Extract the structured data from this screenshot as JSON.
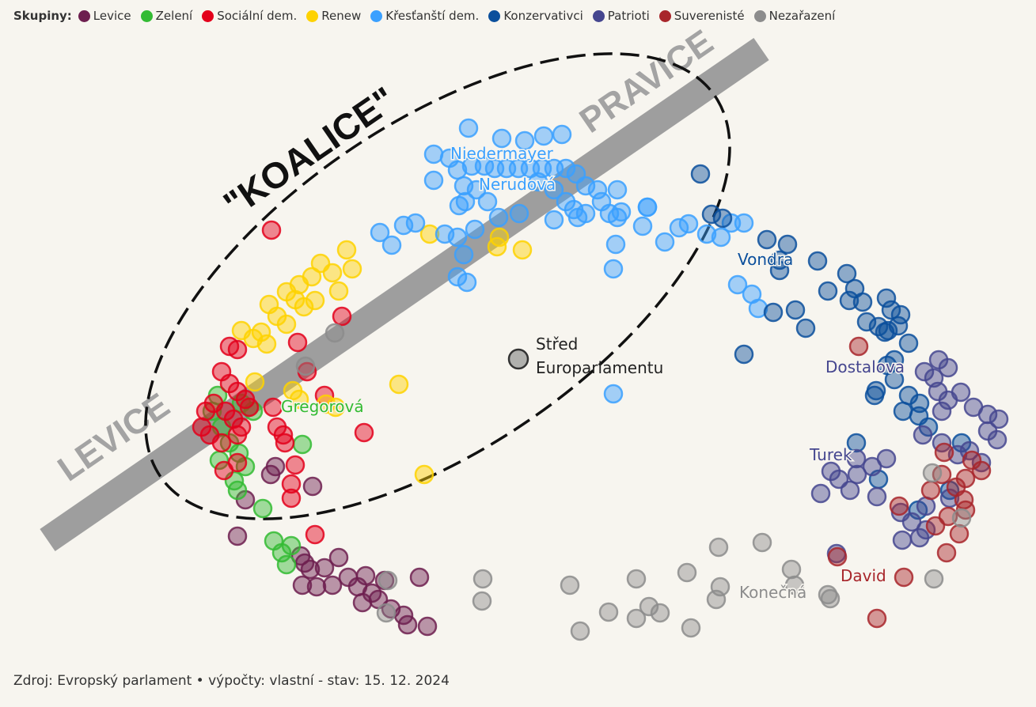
{
  "legend": {
    "title": "Skupiny:",
    "groups": [
      {
        "key": "levice",
        "name": "Levice",
        "color": "#6d1f4f"
      },
      {
        "key": "zeleni",
        "name": "Zelení",
        "color": "#33bb33"
      },
      {
        "key": "socdem",
        "name": "Sociální dem.",
        "color": "#e3001b"
      },
      {
        "key": "renew",
        "name": "Renew",
        "color": "#fed200"
      },
      {
        "key": "krestan",
        "name": "Křesťanští dem.",
        "color": "#3aa0ff"
      },
      {
        "key": "konz",
        "name": "Konzervativci",
        "color": "#0b4f9c"
      },
      {
        "key": "patrioti",
        "name": "Patrioti",
        "color": "#45468f"
      },
      {
        "key": "suver",
        "name": "Suverenisté",
        "color": "#a8262b"
      },
      {
        "key": "nezar",
        "name": "Nezařazení",
        "color": "#8c8c8c"
      }
    ]
  },
  "source": "Zdroj: Evropský parlament • výpočty: vlastní - stav: 15. 12. 2024",
  "chart_data": {
    "type": "scatter",
    "annotations": {
      "levice": "LEVICE",
      "pravice": "PRAVICE",
      "koalice": "\"KOALICE\"",
      "center_line1": "Střed",
      "center_line2": "Europarlamentu"
    },
    "labels": [
      {
        "text": "Niedermayer",
        "group": "krestan"
      },
      {
        "text": "Nerudová",
        "group": "krestan"
      },
      {
        "text": "Vondra",
        "group": "konz"
      },
      {
        "text": "Dostalova",
        "group": "patrioti"
      },
      {
        "text": "Turek",
        "group": "patrioti"
      },
      {
        "text": "Gregorová",
        "group": "zeleni"
      },
      {
        "text": "David",
        "group": "suver"
      },
      {
        "text": "Konečná",
        "group": "nezar"
      }
    ],
    "center": [
      655,
      454
    ],
    "series": [
      {
        "group": "levice",
        "points": [
          [
            300,
            678
          ],
          [
            310,
            632
          ],
          [
            342,
            600
          ],
          [
            348,
            590
          ],
          [
            385,
            712
          ],
          [
            392,
            720
          ],
          [
            382,
            740
          ],
          [
            400,
            742
          ],
          [
            410,
            718
          ],
          [
            420,
            740
          ],
          [
            428,
            705
          ],
          [
            440,
            730
          ],
          [
            452,
            742
          ],
          [
            458,
            762
          ],
          [
            462,
            728
          ],
          [
            470,
            750
          ],
          [
            478,
            758
          ],
          [
            486,
            734
          ],
          [
            494,
            770
          ],
          [
            510,
            778
          ],
          [
            515,
            790
          ],
          [
            530,
            730
          ],
          [
            540,
            792
          ],
          [
            395,
            615
          ],
          [
            380,
            703
          ]
        ]
      },
      {
        "group": "zeleni",
        "points": [
          [
            275,
            500
          ],
          [
            268,
            520
          ],
          [
            280,
            540
          ],
          [
            290,
            560
          ],
          [
            302,
            573
          ],
          [
            310,
            590
          ],
          [
            296,
            608
          ],
          [
            277,
            582
          ],
          [
            300,
            620
          ],
          [
            382,
            562
          ],
          [
            332,
            643
          ],
          [
            346,
            684
          ],
          [
            356,
            699
          ],
          [
            362,
            714
          ],
          [
            368,
            690
          ],
          [
            305,
            510
          ],
          [
            320,
            520
          ]
        ]
      },
      {
        "group": "socdem",
        "points": [
          [
            343,
            291
          ],
          [
            290,
            438
          ],
          [
            300,
            442
          ],
          [
            376,
            433
          ],
          [
            432,
            400
          ],
          [
            280,
            470
          ],
          [
            290,
            485
          ],
          [
            300,
            495
          ],
          [
            310,
            505
          ],
          [
            315,
            515
          ],
          [
            270,
            510
          ],
          [
            260,
            520
          ],
          [
            255,
            540
          ],
          [
            265,
            550
          ],
          [
            285,
            520
          ],
          [
            295,
            530
          ],
          [
            305,
            540
          ],
          [
            280,
            560
          ],
          [
            300,
            550
          ],
          [
            345,
            515
          ],
          [
            350,
            540
          ],
          [
            358,
            550
          ],
          [
            360,
            560
          ],
          [
            368,
            612
          ],
          [
            373,
            588
          ],
          [
            388,
            470
          ],
          [
            410,
            500
          ],
          [
            460,
            547
          ],
          [
            398,
            676
          ],
          [
            368,
            630
          ],
          [
            283,
            595
          ],
          [
            300,
            585
          ]
        ]
      },
      {
        "group": "renew",
        "points": [
          [
            438,
            316
          ],
          [
            405,
            333
          ],
          [
            420,
            345
          ],
          [
            445,
            340
          ],
          [
            394,
            350
          ],
          [
            378,
            360
          ],
          [
            362,
            369
          ],
          [
            373,
            379
          ],
          [
            384,
            388
          ],
          [
            398,
            380
          ],
          [
            428,
            368
          ],
          [
            340,
            385
          ],
          [
            350,
            400
          ],
          [
            362,
            410
          ],
          [
            330,
            420
          ],
          [
            305,
            418
          ],
          [
            320,
            428
          ],
          [
            337,
            435
          ],
          [
            322,
            483
          ],
          [
            370,
            494
          ],
          [
            378,
            505
          ],
          [
            412,
            511
          ],
          [
            424,
            515
          ],
          [
            504,
            486
          ],
          [
            543,
            296
          ],
          [
            631,
            300
          ],
          [
            660,
            316
          ],
          [
            536,
            600
          ],
          [
            628,
            312
          ]
        ]
      },
      {
        "group": "krestan",
        "points": [
          [
            592,
            162
          ],
          [
            634,
            175
          ],
          [
            663,
            178
          ],
          [
            687,
            172
          ],
          [
            710,
            170
          ],
          [
            548,
            195
          ],
          [
            568,
            200
          ],
          [
            578,
            215
          ],
          [
            596,
            210
          ],
          [
            612,
            210
          ],
          [
            625,
            213
          ],
          [
            640,
            213
          ],
          [
            655,
            213
          ],
          [
            670,
            213
          ],
          [
            685,
            213
          ],
          [
            700,
            213
          ],
          [
            715,
            213
          ],
          [
            728,
            220
          ],
          [
            740,
            235
          ],
          [
            755,
            240
          ],
          [
            680,
            230
          ],
          [
            700,
            240
          ],
          [
            715,
            255
          ],
          [
            725,
            265
          ],
          [
            740,
            270
          ],
          [
            760,
            255
          ],
          [
            770,
            270
          ],
          [
            785,
            268
          ],
          [
            548,
            228
          ],
          [
            586,
            235
          ],
          [
            602,
            240
          ],
          [
            588,
            255
          ],
          [
            616,
            255
          ],
          [
            580,
            260
          ],
          [
            480,
            294
          ],
          [
            495,
            310
          ],
          [
            510,
            285
          ],
          [
            525,
            282
          ],
          [
            562,
            296
          ],
          [
            578,
            300
          ],
          [
            586,
            322
          ],
          [
            600,
            290
          ],
          [
            630,
            275
          ],
          [
            656,
            270
          ],
          [
            700,
            278
          ],
          [
            730,
            275
          ],
          [
            780,
            275
          ],
          [
            812,
            286
          ],
          [
            818,
            262
          ],
          [
            778,
            309
          ],
          [
            775,
            340
          ],
          [
            840,
            306
          ],
          [
            858,
            288
          ],
          [
            870,
            283
          ],
          [
            893,
            296
          ],
          [
            911,
            300
          ],
          [
            924,
            282
          ],
          [
            940,
            282
          ],
          [
            932,
            360
          ],
          [
            950,
            372
          ],
          [
            958,
            390
          ],
          [
            578,
            350
          ],
          [
            590,
            357
          ],
          [
            775,
            498
          ],
          [
            818,
            262
          ],
          [
            780,
            240
          ]
        ]
      },
      {
        "group": "konz",
        "points": [
          [
            885,
            220
          ],
          [
            899,
            271
          ],
          [
            913,
            276
          ],
          [
            969,
            303
          ],
          [
            995,
            309
          ],
          [
            985,
            329
          ],
          [
            1033,
            330
          ],
          [
            985,
            342
          ],
          [
            1018,
            415
          ],
          [
            1046,
            368
          ],
          [
            1070,
            346
          ],
          [
            1080,
            365
          ],
          [
            1073,
            380
          ],
          [
            1090,
            382
          ],
          [
            1120,
            377
          ],
          [
            1126,
            392
          ],
          [
            1095,
            407
          ],
          [
            1110,
            413
          ],
          [
            1122,
            418
          ],
          [
            1135,
            412
          ],
          [
            1148,
            434
          ],
          [
            1130,
            455
          ],
          [
            1121,
            462
          ],
          [
            1130,
            480
          ],
          [
            1107,
            494
          ],
          [
            1105,
            500
          ],
          [
            1148,
            500
          ],
          [
            1162,
            510
          ],
          [
            1141,
            520
          ],
          [
            1161,
            526
          ],
          [
            1173,
            540
          ],
          [
            1082,
            560
          ],
          [
            1110,
            606
          ],
          [
            1160,
            645
          ],
          [
            1215,
            560
          ],
          [
            1200,
            620
          ],
          [
            977,
            395
          ],
          [
            1005,
            392
          ],
          [
            940,
            448
          ],
          [
            1118,
            420
          ],
          [
            1138,
            398
          ]
        ]
      },
      {
        "group": "patrioti",
        "points": [
          [
            1186,
            455
          ],
          [
            1198,
            465
          ],
          [
            1168,
            470
          ],
          [
            1180,
            478
          ],
          [
            1185,
            495
          ],
          [
            1214,
            496
          ],
          [
            1198,
            506
          ],
          [
            1190,
            520
          ],
          [
            1248,
            524
          ],
          [
            1262,
            530
          ],
          [
            1248,
            545
          ],
          [
            1260,
            556
          ],
          [
            1230,
            515
          ],
          [
            1166,
            550
          ],
          [
            1190,
            560
          ],
          [
            1210,
            575
          ],
          [
            1082,
            580
          ],
          [
            1102,
            590
          ],
          [
            1050,
            596
          ],
          [
            1060,
            606
          ],
          [
            1083,
            600
          ],
          [
            1037,
            624
          ],
          [
            1074,
            620
          ],
          [
            1108,
            628
          ],
          [
            1138,
            648
          ],
          [
            1152,
            660
          ],
          [
            1170,
            670
          ],
          [
            1162,
            680
          ],
          [
            1140,
            683
          ],
          [
            1057,
            700
          ],
          [
            1120,
            580
          ],
          [
            1200,
            630
          ],
          [
            1170,
            640
          ],
          [
            1225,
            570
          ],
          [
            1240,
            585
          ]
        ]
      },
      {
        "group": "suver",
        "points": [
          [
            1085,
            438
          ],
          [
            1193,
            572
          ],
          [
            1228,
            582
          ],
          [
            1240,
            595
          ],
          [
            1220,
            605
          ],
          [
            1208,
            616
          ],
          [
            1218,
            632
          ],
          [
            1220,
            645
          ],
          [
            1198,
            653
          ],
          [
            1182,
            665
          ],
          [
            1136,
            640
          ],
          [
            1212,
            675
          ],
          [
            1196,
            699
          ],
          [
            1058,
            704
          ],
          [
            1142,
            730
          ],
          [
            1108,
            782
          ],
          [
            1176,
            620
          ],
          [
            1190,
            600
          ]
        ]
      },
      {
        "group": "nezar",
        "points": [
          [
            386,
            463
          ],
          [
            423,
            421
          ],
          [
            490,
            734
          ],
          [
            488,
            775
          ],
          [
            610,
            732
          ],
          [
            609,
            760
          ],
          [
            720,
            740
          ],
          [
            733,
            798
          ],
          [
            769,
            774
          ],
          [
            804,
            732
          ],
          [
            804,
            782
          ],
          [
            820,
            767
          ],
          [
            834,
            775
          ],
          [
            868,
            724
          ],
          [
            873,
            794
          ],
          [
            908,
            692
          ],
          [
            910,
            742
          ],
          [
            905,
            758
          ],
          [
            963,
            686
          ],
          [
            1000,
            720
          ],
          [
            1004,
            740
          ],
          [
            1046,
            752
          ],
          [
            1049,
            757
          ],
          [
            1180,
            732
          ],
          [
            1178,
            598
          ],
          [
            1215,
            655
          ]
        ]
      }
    ]
  }
}
